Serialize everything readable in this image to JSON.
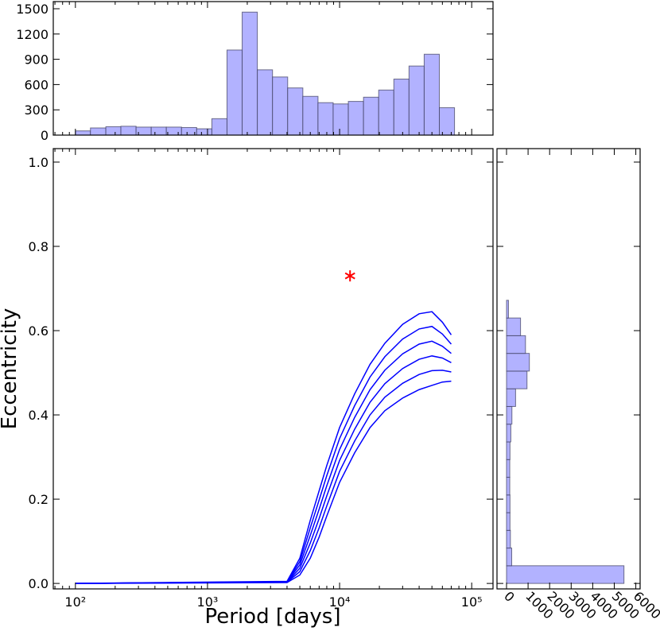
{
  "chart_data": [
    {
      "type": "line",
      "xlabel": "Period [days]",
      "ylabel": "Eccentricity",
      "xscale": "log",
      "xlim": [
        68,
        145000
      ],
      "ylim": [
        -0.013,
        1.032
      ],
      "xticks": [
        {
          "value": 100,
          "label": "10²"
        },
        {
          "value": 1000,
          "label": "10³"
        },
        {
          "value": 10000,
          "label": "10⁴"
        },
        {
          "value": 100000,
          "label": "10⁵"
        }
      ],
      "yticks": [
        {
          "value": 0,
          "label": "0.0"
        },
        0.2,
        0.4,
        0.6,
        0.8,
        {
          "value": 1,
          "label": "1.0"
        }
      ],
      "x": [
        100,
        4000,
        5000,
        6000,
        7000,
        8000,
        10000,
        13000,
        17000,
        22000,
        30000,
        40000,
        50000,
        60000,
        70000
      ],
      "series": [
        {
          "color": "#0000ff",
          "values": [
            0,
            0.005,
            0.06,
            0.15,
            0.22,
            0.28,
            0.37,
            0.45,
            0.52,
            0.57,
            0.615,
            0.64,
            0.645,
            0.62,
            0.59
          ]
        },
        {
          "color": "#0000ff",
          "values": [
            0,
            0.004,
            0.052,
            0.132,
            0.198,
            0.256,
            0.344,
            0.422,
            0.49,
            0.538,
            0.58,
            0.604,
            0.61,
            0.592,
            0.568
          ]
        },
        {
          "color": "#0000ff",
          "values": [
            0,
            0.004,
            0.044,
            0.114,
            0.176,
            0.232,
            0.318,
            0.394,
            0.46,
            0.506,
            0.545,
            0.568,
            0.575,
            0.563,
            0.546
          ]
        },
        {
          "color": "#0000ff",
          "values": [
            0,
            0.003,
            0.036,
            0.096,
            0.154,
            0.208,
            0.292,
            0.366,
            0.43,
            0.474,
            0.51,
            0.532,
            0.54,
            0.535,
            0.524
          ]
        },
        {
          "color": "#0000ff",
          "values": [
            0,
            0.003,
            0.028,
            0.078,
            0.132,
            0.184,
            0.266,
            0.338,
            0.4,
            0.442,
            0.475,
            0.496,
            0.505,
            0.506,
            0.502
          ]
        },
        {
          "color": "#0000ff",
          "values": [
            0,
            0.002,
            0.02,
            0.06,
            0.11,
            0.16,
            0.24,
            0.31,
            0.37,
            0.41,
            0.44,
            0.46,
            0.47,
            0.478,
            0.48
          ]
        }
      ],
      "star": {
        "x": 12000,
        "y": 0.73,
        "color": "#ff0000"
      }
    },
    {
      "type": "histogram",
      "orientation": "vertical",
      "xscale": "log",
      "xlim": [
        68,
        145000
      ],
      "ylim": [
        0,
        1585
      ],
      "xticks": [
        100,
        1000,
        10000,
        100000
      ],
      "yticks": [
        0,
        300,
        600,
        900,
        1200,
        1500
      ],
      "color": "#b2b2ff",
      "bins": [
        100,
        130,
        170,
        221,
        288,
        375,
        488,
        636,
        828,
        1079,
        1405,
        1830,
        2384,
        3106,
        4045,
        5270,
        6864,
        8941,
        11647,
        15172,
        19763,
        25743,
        33533,
        43680,
        56898,
        74116
      ],
      "values": [
        50,
        85,
        100,
        105,
        95,
        95,
        95,
        90,
        75,
        195,
        1010,
        1460,
        775,
        690,
        560,
        460,
        385,
        370,
        400,
        450,
        535,
        665,
        820,
        960,
        325
      ]
    },
    {
      "type": "histogram",
      "orientation": "horizontal",
      "xlim": [
        0,
        6200
      ],
      "ylim": [
        -0.013,
        1.032
      ],
      "xticks": [
        0,
        1000,
        2000,
        3000,
        4000,
        5000,
        6000
      ],
      "yticks": [
        0,
        0.2,
        0.4,
        0.6,
        0.8,
        1
      ],
      "color": "#b2b2ff",
      "bins": [
        0,
        0.042,
        0.084,
        0.126,
        0.168,
        0.21,
        0.252,
        0.294,
        0.336,
        0.378,
        0.42,
        0.462,
        0.504,
        0.546,
        0.588,
        0.63,
        0.672
      ],
      "values": [
        5450,
        240,
        180,
        160,
        160,
        150,
        150,
        160,
        200,
        250,
        420,
        950,
        1060,
        880,
        650,
        90
      ]
    }
  ]
}
